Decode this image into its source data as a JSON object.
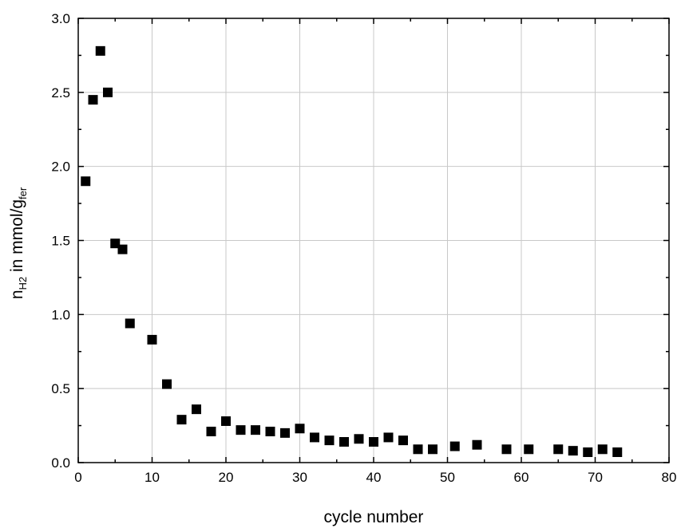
{
  "chart_data": {
    "type": "scatter",
    "title": "",
    "xlabel": "cycle number",
    "ylabel": {
      "base": "n",
      "sub": "H2",
      "mid": " in mmol/g",
      "sub2": "fer"
    },
    "xlim": [
      0,
      80
    ],
    "ylim": [
      0,
      3.0
    ],
    "xticks": [
      0,
      10,
      20,
      30,
      40,
      50,
      60,
      70,
      80
    ],
    "yticks": [
      0.0,
      0.5,
      1.0,
      1.5,
      2.0,
      2.5,
      3.0
    ],
    "xtick_labels": [
      "0",
      "10",
      "20",
      "30",
      "40",
      "50",
      "60",
      "70",
      "80"
    ],
    "ytick_labels": [
      "0.0",
      "0.5",
      "1.0",
      "1.5",
      "2.0",
      "2.5",
      "3.0"
    ],
    "grid": true,
    "legend": "none",
    "marker": "square",
    "marker_color": "#000000",
    "grid_color": "#c8c8c8",
    "series": [
      {
        "x": [
          1,
          2,
          3,
          4,
          5,
          6,
          7,
          10,
          12,
          14,
          16,
          18,
          20,
          22,
          24,
          26,
          28,
          30,
          32,
          34,
          36,
          38,
          40,
          42,
          44,
          46,
          48,
          51,
          54,
          58,
          61,
          65,
          67,
          69,
          71,
          73
        ],
        "y": [
          1.9,
          2.45,
          2.78,
          2.5,
          1.48,
          1.44,
          0.94,
          0.83,
          0.53,
          0.29,
          0.36,
          0.21,
          0.28,
          0.22,
          0.22,
          0.21,
          0.2,
          0.23,
          0.17,
          0.15,
          0.14,
          0.16,
          0.14,
          0.17,
          0.15,
          0.09,
          0.09,
          0.11,
          0.12,
          0.09,
          0.09,
          0.09,
          0.08,
          0.07,
          0.09,
          0.07
        ]
      }
    ]
  }
}
